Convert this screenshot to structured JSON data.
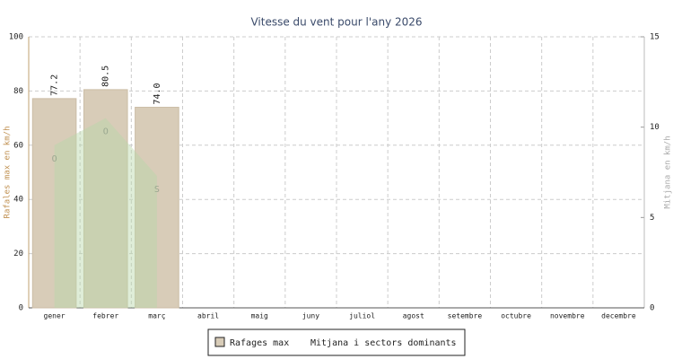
{
  "chart_data": {
    "type": "bar",
    "title": "Vitesse du vent pour l'any 2026",
    "y_label": "Rafales max en km/h",
    "y2_label": "Mitjana en km/h",
    "categories": [
      "gener",
      "febrer",
      "març",
      "abril",
      "maig",
      "juny",
      "juliol",
      "agost",
      "setembre",
      "octubre",
      "novembre",
      "decembre"
    ],
    "series": [
      {
        "name": "Rafages max",
        "type": "bar",
        "color": "#d8ccb8",
        "values": [
          77.2,
          80.5,
          74.0,
          null,
          null,
          null,
          null,
          null,
          null,
          null,
          null,
          null
        ],
        "value_labels": [
          "77.2",
          "80.5",
          "74.0",
          null,
          null,
          null,
          null,
          null,
          null,
          null,
          null,
          null
        ]
      },
      {
        "name": "Mitjana i sectors dominants",
        "type": "area",
        "axis": "y2",
        "color": "#b8d8a8",
        "values": [
          9,
          10.5,
          7.3,
          null,
          null,
          null,
          null,
          null,
          null,
          null,
          null,
          null
        ],
        "sectors": [
          "O",
          "O",
          "S",
          null,
          null,
          null,
          null,
          null,
          null,
          null,
          null,
          null
        ]
      }
    ],
    "ylim": [
      0,
      100
    ],
    "yticks": [
      0,
      20,
      40,
      60,
      80,
      100
    ],
    "y2lim": [
      0,
      15
    ],
    "y2ticks": [
      0,
      5,
      10,
      15
    ],
    "grid": true,
    "legend": "bottom"
  }
}
